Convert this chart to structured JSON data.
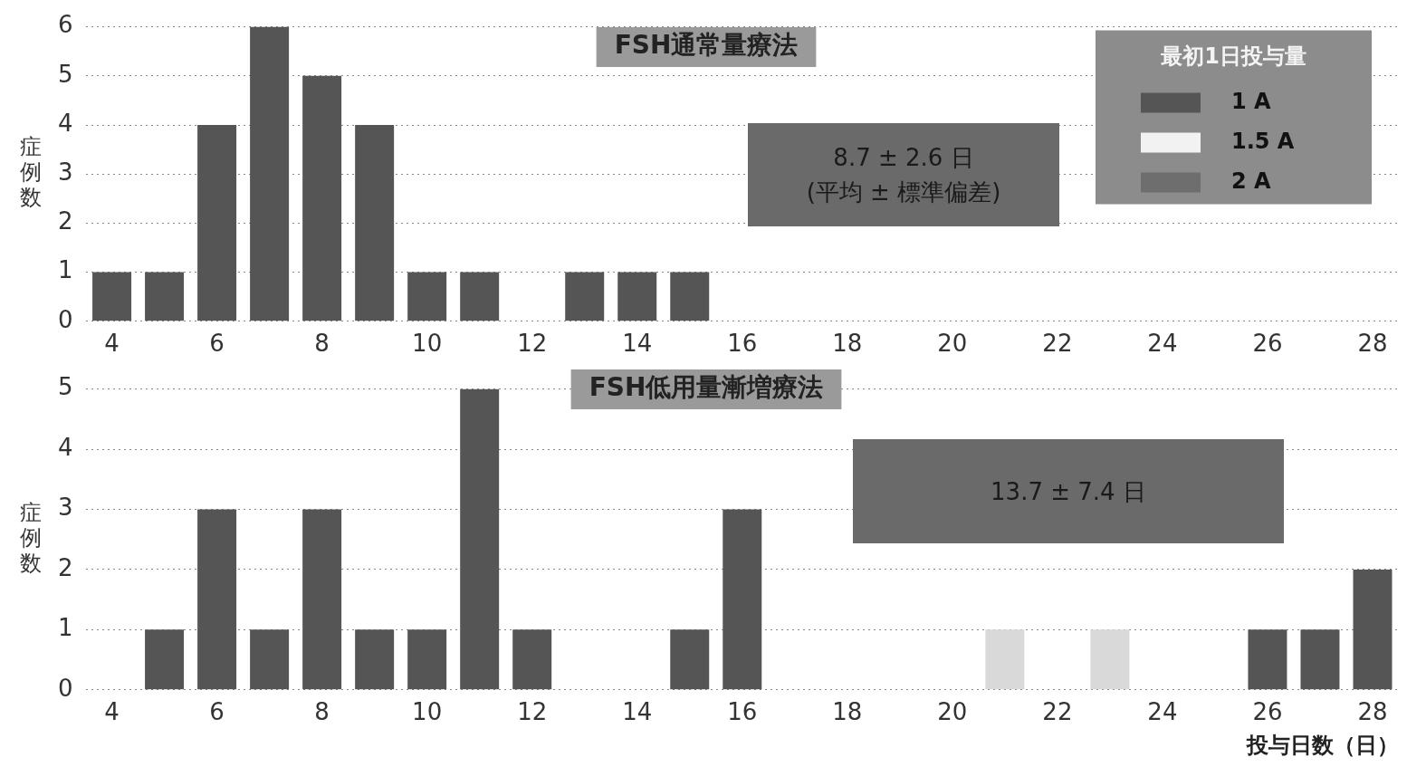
{
  "chart_data": [
    {
      "type": "bar",
      "title": "FSH通常量療法",
      "ylabel": "症例数",
      "categories": [
        "4",
        null,
        "6",
        null,
        "8",
        null,
        "10",
        null,
        "12",
        null,
        "14",
        null,
        "16",
        null,
        "18",
        null,
        "20",
        null,
        "22",
        null,
        "24",
        null,
        "26",
        null,
        "28"
      ],
      "series": [
        {
          "name": "1 A",
          "color": "#555555",
          "values": [
            1,
            1,
            4,
            6,
            5,
            4,
            1,
            1,
            0,
            1,
            1,
            1,
            0,
            0,
            0,
            0,
            0,
            0,
            0,
            0,
            0,
            0,
            0,
            0,
            0
          ]
        },
        {
          "name": "1.5 A",
          "color": "#f2f2f2",
          "values": [
            null,
            null,
            null,
            null,
            null,
            null,
            null,
            null,
            null,
            null,
            null,
            null,
            null,
            null,
            null,
            null,
            null,
            null,
            null,
            null,
            null,
            null,
            null,
            null,
            null
          ]
        },
        {
          "name": "2 A",
          "color": "#6e6e6e",
          "values": [
            null,
            null,
            null,
            null,
            null,
            null,
            null,
            null,
            null,
            null,
            null,
            null,
            null,
            null,
            null,
            null,
            null,
            null,
            null,
            null,
            null,
            null,
            null,
            null,
            null
          ]
        }
      ],
      "stacked": true,
      "ylim": [
        0,
        6
      ],
      "yticks": [
        0,
        1,
        2,
        3,
        4,
        5,
        6
      ],
      "grid": "y",
      "legend": "top right",
      "legend_title": "最初1日投与量",
      "annotations": [
        "8.7 ± 2.6 日",
        "(平均 ± 標準偏差)"
      ]
    },
    {
      "type": "bar",
      "title": "FSH低用量漸増療法",
      "ylabel": "症例数",
      "xlabel": "投与日数（日）",
      "categories": [
        "4",
        null,
        "6",
        null,
        "8",
        null,
        "10",
        null,
        "12",
        null,
        "14",
        null,
        "16",
        null,
        "18",
        null,
        "20",
        null,
        "22",
        null,
        "24",
        null,
        "26",
        null,
        "28"
      ],
      "series": [
        {
          "color": "#555555",
          "values": [
            0,
            1,
            3,
            1,
            3,
            1,
            1,
            5,
            1,
            0,
            0,
            1,
            3,
            0,
            0,
            0,
            0,
            null,
            0,
            null,
            0,
            0,
            1,
            1,
            2
          ]
        },
        {
          "color": "#d9d9d9",
          "values": [
            null,
            null,
            null,
            null,
            null,
            null,
            null,
            null,
            null,
            null,
            null,
            null,
            null,
            null,
            null,
            null,
            null,
            1,
            null,
            1,
            null,
            null,
            null,
            null,
            null
          ]
        }
      ],
      "stacked": true,
      "ylim": [
        0,
        5
      ],
      "yticks": [
        0,
        1,
        2,
        3,
        4,
        5
      ],
      "grid": "y",
      "legend": false,
      "annotations": [
        "13.7 ± 7.4 日"
      ]
    }
  ]
}
